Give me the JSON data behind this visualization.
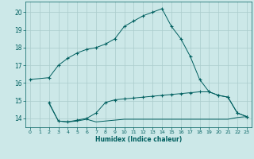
{
  "line1_x": [
    0,
    2,
    3,
    4,
    5,
    6,
    7,
    8,
    9,
    10,
    11,
    12,
    13,
    14,
    15,
    16,
    17,
    18,
    19,
    20,
    21,
    22,
    23
  ],
  "line1_y": [
    16.2,
    16.3,
    17.0,
    17.4,
    17.7,
    17.9,
    18.0,
    18.2,
    18.5,
    19.2,
    19.5,
    19.8,
    20.0,
    20.2,
    19.2,
    18.5,
    17.5,
    16.2,
    15.5,
    15.3,
    15.2,
    14.3,
    14.1
  ],
  "line2_x": [
    2,
    3,
    4,
    5,
    6,
    7,
    8,
    9,
    10,
    11,
    12,
    13,
    14,
    15,
    16,
    17,
    18,
    19,
    20,
    21,
    22,
    23
  ],
  "line2_y": [
    14.9,
    13.85,
    13.8,
    13.9,
    14.0,
    14.3,
    14.9,
    15.05,
    15.1,
    15.15,
    15.2,
    15.25,
    15.3,
    15.35,
    15.4,
    15.45,
    15.5,
    15.5,
    15.3,
    15.2,
    14.3,
    14.1
  ],
  "line3_x": [
    2,
    3,
    4,
    5,
    6,
    7,
    8,
    9,
    10,
    11,
    12,
    13,
    14,
    15,
    16,
    17,
    18,
    19,
    20,
    21,
    22,
    23
  ],
  "line3_y": [
    14.85,
    13.85,
    13.8,
    13.85,
    13.95,
    13.8,
    13.85,
    13.9,
    13.95,
    13.95,
    13.95,
    13.95,
    13.95,
    13.95,
    13.95,
    13.95,
    13.95,
    13.95,
    13.95,
    13.95,
    14.05,
    14.1
  ],
  "bg_color": "#cce8e8",
  "grid_color": "#aacccc",
  "line_color": "#005f5f",
  "xlabel": "Humidex (Indice chaleur)",
  "xlim": [
    -0.5,
    23.5
  ],
  "ylim": [
    13.5,
    20.6
  ],
  "yticks": [
    14,
    15,
    16,
    17,
    18,
    19,
    20
  ],
  "xticks": [
    0,
    1,
    2,
    3,
    4,
    5,
    6,
    7,
    8,
    9,
    10,
    11,
    12,
    13,
    14,
    15,
    16,
    17,
    18,
    19,
    20,
    21,
    22,
    23
  ],
  "marker": "+"
}
